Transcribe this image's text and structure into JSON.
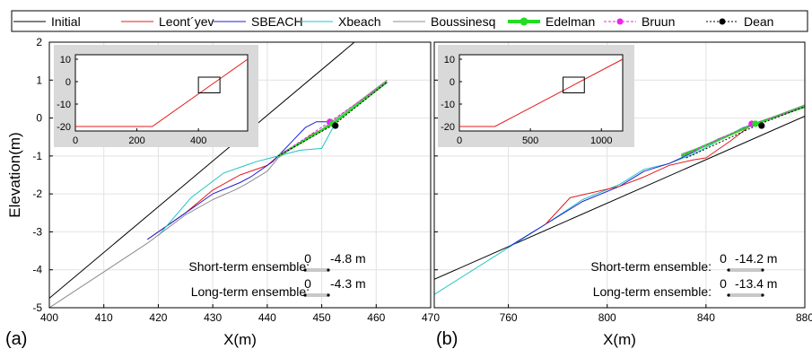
{
  "legend": {
    "entries": [
      {
        "name": "Initial",
        "color": "#000000",
        "dash": "",
        "width": 1,
        "marker": ""
      },
      {
        "name": "Leont´yev",
        "color": "#e41a1c",
        "dash": "",
        "width": 1,
        "marker": ""
      },
      {
        "name": "SBEACH",
        "color": "#1f1fd1",
        "dash": "",
        "width": 1,
        "marker": ""
      },
      {
        "name": "Xbeach",
        "color": "#1fc4c4",
        "dash": "",
        "width": 1,
        "marker": ""
      },
      {
        "name": "Boussinesq",
        "color": "#8c8c8c",
        "dash": "",
        "width": 1,
        "marker": ""
      },
      {
        "name": "Edelman",
        "color": "#22dd22",
        "dash": "",
        "width": 4,
        "marker": "#22dd22"
      },
      {
        "name": "Bruun",
        "color": "#ee22ee",
        "dash": "3,2",
        "width": 1,
        "marker": "#ee22ee"
      },
      {
        "name": "Dean",
        "color": "#000000",
        "dash": "2,2",
        "width": 1,
        "marker": "#000000"
      }
    ]
  },
  "chart_data": [
    {
      "type": "line",
      "panel_label": "(a)",
      "xlabel": "X(m)",
      "ylabel": "Elevation(m)",
      "xlim": [
        400,
        470
      ],
      "ylim": [
        -5,
        2
      ],
      "xticks": [
        400,
        410,
        420,
        430,
        440,
        450,
        460,
        470
      ],
      "yticks": [
        -5,
        -4,
        -3,
        -2,
        -1,
        0,
        1,
        2
      ],
      "grid": true,
      "series": [
        {
          "name": "Initial",
          "color": "#000000",
          "x": [
            400,
            456
          ],
          "y": [
            -4.75,
            2
          ]
        },
        {
          "name": "Leont´yev",
          "color": "#e41a1c",
          "x": [
            418,
            425,
            430,
            435,
            440,
            442,
            445,
            448,
            452
          ],
          "y": [
            -3.2,
            -2.5,
            -1.9,
            -1.5,
            -1.25,
            -1.0,
            -0.75,
            -0.45,
            -0.15
          ]
        },
        {
          "name": "SBEACH",
          "color": "#1f1fd1",
          "x": [
            418,
            425,
            430,
            435,
            437,
            441,
            442,
            445,
            447,
            449,
            451.5
          ],
          "y": [
            -3.2,
            -2.5,
            -2.0,
            -1.7,
            -1.55,
            -1.15,
            -1.0,
            -0.55,
            -0.25,
            -0.1,
            -0.1
          ]
        },
        {
          "name": "Xbeach",
          "color": "#1fc4c4",
          "x": [
            420,
            426,
            432,
            436,
            438,
            442,
            446,
            450,
            453
          ],
          "y": [
            -3.1,
            -2.1,
            -1.45,
            -1.25,
            -1.15,
            -1.0,
            -0.85,
            -0.8,
            0.0
          ]
        },
        {
          "name": "Boussinesq",
          "color": "#8c8c8c",
          "x": [
            400,
            418,
            425,
            430,
            434,
            436,
            440,
            442,
            446,
            450,
            462
          ],
          "y": [
            -5,
            -3.3,
            -2.55,
            -2.15,
            -1.9,
            -1.75,
            -1.4,
            -1.05,
            -0.65,
            -0.3,
            1.0
          ]
        },
        {
          "name": "Edelman",
          "color": "#22dd22",
          "x": [
            442,
            452,
            462
          ],
          "y": [
            -1.0,
            -0.15,
            0.95
          ]
        },
        {
          "name": "Bruun",
          "color": "#ee22ee",
          "x": [
            442,
            451.5,
            462
          ],
          "y": [
            -1.0,
            -0.1,
            0.95
          ]
        },
        {
          "name": "Dean",
          "color": "#000000",
          "x": [
            442,
            452.5,
            462
          ],
          "y": [
            -1.0,
            -0.15,
            0.95
          ]
        }
      ],
      "end_markers": [
        {
          "name": "Bruun",
          "x": 451.5,
          "y": -0.1,
          "color": "#ee22ee"
        },
        {
          "name": "Edelman",
          "x": 452,
          "y": -0.15,
          "color": "#22dd22"
        },
        {
          "name": "Dean",
          "x": 452.5,
          "y": -0.2,
          "color": "#000000"
        }
      ],
      "annotations": [
        {
          "label": "Short-term ensemble:",
          "start": "0",
          "end": "-4.8 m"
        },
        {
          "label": "Long-term ensemble:",
          "start": "0",
          "end": "-4.3 m"
        }
      ],
      "inset": {
        "xlim": [
          0,
          560
        ],
        "ylim": [
          -22,
          12
        ],
        "xticks": [
          0,
          200,
          400
        ],
        "yticks": [
          -20,
          -10,
          0,
          10
        ],
        "profile": {
          "x": [
            0,
            250,
            560
          ],
          "y": [
            -20,
            -20,
            10
          ]
        },
        "box": {
          "x": [
            400,
            470
          ],
          "y": [
            -5,
            2
          ]
        }
      }
    },
    {
      "type": "line",
      "panel_label": "(b)",
      "xlabel": "X(m)",
      "ylabel": "",
      "xlim": [
        730,
        880
      ],
      "ylim": [
        -5,
        2
      ],
      "xticks": [
        760,
        800,
        840,
        880
      ],
      "yticks": [
        -5,
        -4,
        -3,
        -2,
        -1,
        0,
        1,
        2
      ],
      "grid": true,
      "series": [
        {
          "name": "Initial",
          "color": "#000000",
          "x": [
            730,
            880
          ],
          "y": [
            -4.25,
            0.05
          ]
        },
        {
          "name": "Xbeach",
          "color": "#1fc4c4",
          "x": [
            730,
            775,
            790,
            805,
            815,
            825,
            835,
            845,
            855,
            865
          ],
          "y": [
            -4.65,
            -2.8,
            -2.15,
            -1.75,
            -1.35,
            -1.2,
            -0.95,
            -0.6,
            -0.25,
            -0.05
          ]
        },
        {
          "name": "SBEACH",
          "color": "#1f1fd1",
          "x": [
            760,
            775,
            790,
            805,
            815,
            825,
            835,
            845,
            855,
            862
          ],
          "y": [
            -3.4,
            -2.8,
            -2.2,
            -1.8,
            -1.4,
            -1.2,
            -0.9,
            -0.55,
            -0.3,
            -0.1
          ]
        },
        {
          "name": "Leont´yev",
          "color": "#e41a1c",
          "x": [
            775,
            785,
            795,
            805,
            815,
            825,
            835,
            840,
            850,
            860
          ],
          "y": [
            -2.8,
            -2.1,
            -1.95,
            -1.8,
            -1.55,
            -1.25,
            -1.1,
            -1.05,
            -0.6,
            -0.1
          ]
        },
        {
          "name": "Boussinesq",
          "color": "#8c8c8c",
          "x": [
            830,
            845,
            860,
            880
          ],
          "y": [
            -0.95,
            -0.6,
            -0.15,
            0.35
          ]
        },
        {
          "name": "Edelman",
          "color": "#22dd22",
          "x": [
            830,
            860,
            880
          ],
          "y": [
            -1.0,
            -0.15,
            0.3
          ]
        },
        {
          "name": "Bruun",
          "color": "#ee22ee",
          "x": [
            830,
            859,
            880
          ],
          "y": [
            -1.0,
            -0.15,
            0.3
          ]
        },
        {
          "name": "Dean",
          "color": "#000000",
          "x": [
            832,
            862,
            880
          ],
          "y": [
            -1.05,
            -0.15,
            0.3
          ]
        }
      ],
      "end_markers": [
        {
          "name": "Bruun",
          "x": 858.5,
          "y": -0.15,
          "color": "#ee22ee"
        },
        {
          "name": "Edelman",
          "x": 860,
          "y": -0.15,
          "color": "#22dd22"
        },
        {
          "name": "Dean",
          "x": 862.5,
          "y": -0.2,
          "color": "#000000"
        }
      ],
      "annotations": [
        {
          "label": "Short-term ensemble:",
          "start": "0",
          "end": "-14.2 m"
        },
        {
          "label": "Long-term ensemble:",
          "start": "0",
          "end": "-13.4 m"
        }
      ],
      "inset": {
        "xlim": [
          0,
          1150
        ],
        "ylim": [
          -22,
          12
        ],
        "xticks": [
          0,
          500,
          1000
        ],
        "yticks": [
          -20,
          -10,
          0,
          10
        ],
        "profile": {
          "x": [
            0,
            250,
            1150
          ],
          "y": [
            -20,
            -20,
            10
          ]
        },
        "box": {
          "x": [
            730,
            880
          ],
          "y": [
            -5,
            2
          ]
        }
      }
    }
  ]
}
